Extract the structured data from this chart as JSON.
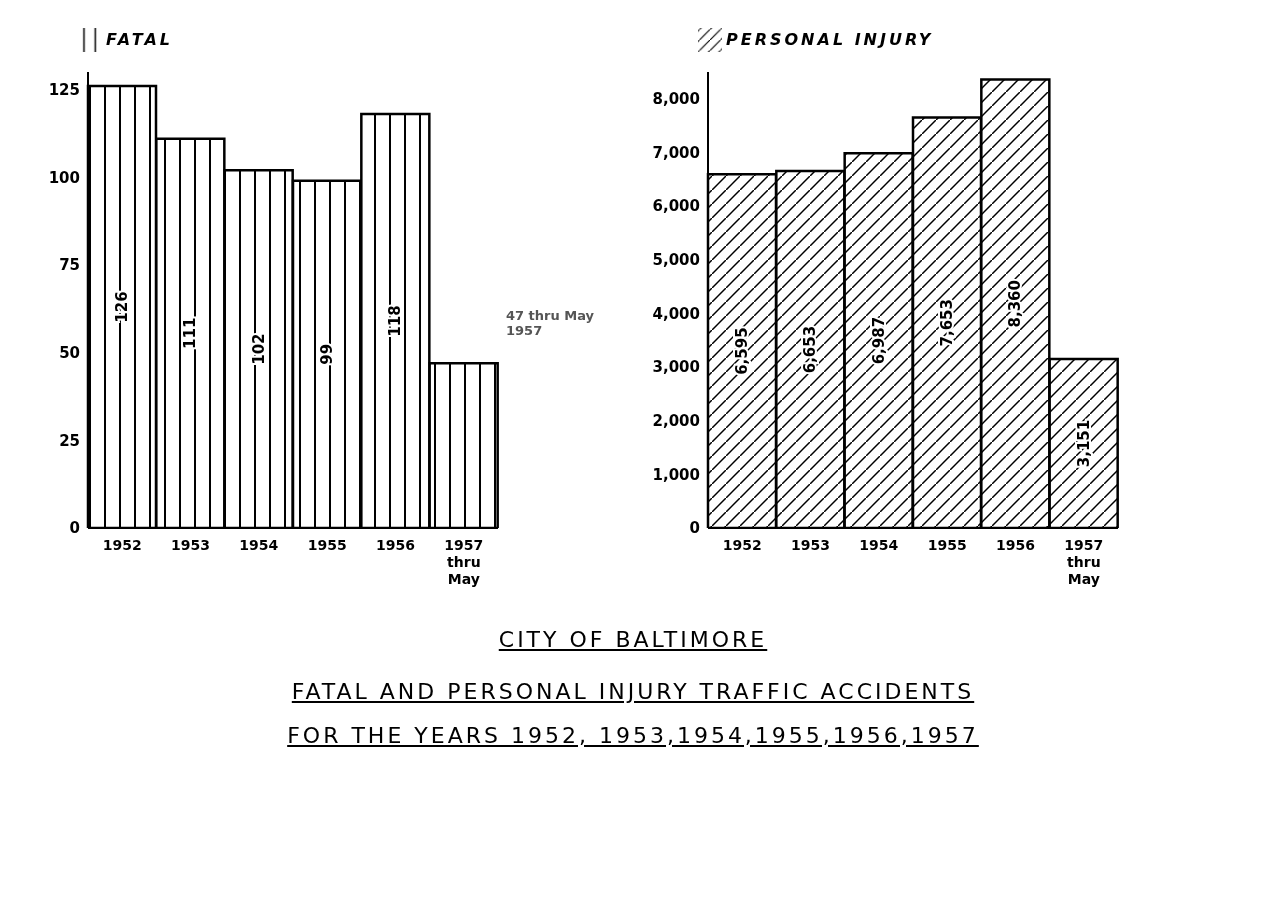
{
  "chart_data": [
    {
      "type": "bar",
      "title": "CITY OF BALTIMORE",
      "subtitle": "FATAL AND PERSONAL INJURY TRAFFIC ACCIDENTS\nFOR THE YEARS 1952, 1953,1954,1955,1956,1957",
      "categories": [
        "1952",
        "1953",
        "1954",
        "1955",
        "1956",
        "1957 thru May"
      ],
      "series": [
        {
          "name": "FATAL",
          "color": "#000000",
          "values": [
            126,
            111,
            102,
            99,
            118,
            47
          ],
          "value_labels": [
            "126",
            "111",
            "102",
            "99",
            "118",
            null
          ]
        }
      ],
      "ylim": [
        0,
        130
      ],
      "yticks": [
        0,
        25,
        50,
        75,
        100,
        125
      ],
      "grid": false,
      "legend": "top left",
      "annotations": [
        "47 thru May 1957"
      ]
    },
    {
      "type": "bar",
      "categories": [
        "1952",
        "1953",
        "1954",
        "1955",
        "1956",
        "1957 thru May"
      ],
      "series": [
        {
          "name": "PERSONAL INJURY",
          "color": "#000000",
          "values": [
            6595,
            6653,
            6987,
            7653,
            8360,
            3151
          ],
          "value_labels": [
            "6,595",
            "6,653",
            "6,987",
            "7,653",
            "8,360",
            "3,151"
          ]
        }
      ],
      "ylim": [
        0,
        8500
      ],
      "yticks": [
        0,
        {
          "value": 1000,
          "label": "1,000"
        },
        {
          "value": 2000,
          "label": "2,000"
        },
        {
          "value": 3000,
          "label": "3,000"
        },
        {
          "value": 4000,
          "label": "4,000"
        },
        {
          "value": 5000,
          "label": "5,000"
        },
        {
          "value": 6000,
          "label": "6,000"
        },
        {
          "value": 7000,
          "label": "7,000"
        },
        {
          "value": 8000,
          "label": "8,000"
        }
      ],
      "grid": false,
      "legend": "top left"
    }
  ]
}
